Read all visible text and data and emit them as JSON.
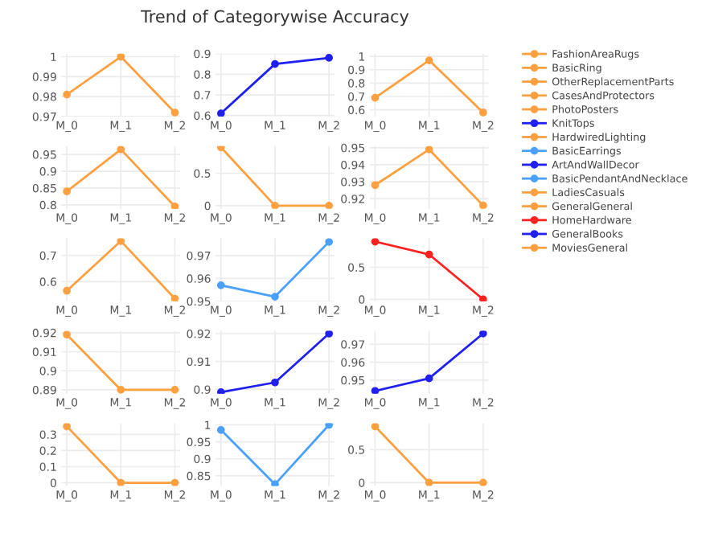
{
  "chart_data": [
    {
      "type": "line",
      "categories": [
        "M_0",
        "M_1",
        "M_2"
      ],
      "series": [
        {
          "name": "FashionAreaRugs",
          "color": "#ffa040",
          "values": [
            0.981,
            1.0,
            0.972
          ]
        }
      ],
      "ylim": [
        0.97,
        1.0015
      ],
      "yticks": [
        0.97,
        0.98,
        0.99,
        1
      ],
      "grid": true,
      "marker": "circle",
      "legend": "right"
    },
    {
      "type": "line",
      "categories": [
        "M_0",
        "M_1",
        "M_2"
      ],
      "series": [
        {
          "name": "BasicRing",
          "color": "#ffa040",
          "values": [
            0.84,
            0.965,
            0.795
          ]
        }
      ],
      "ylim": [
        0.788,
        0.975
      ],
      "yticks": [
        0.8,
        0.85,
        0.9,
        0.95
      ],
      "grid": true,
      "marker": "circle",
      "legend": "right"
    },
    {
      "type": "line",
      "categories": [
        "M_0",
        "M_1",
        "M_2"
      ],
      "series": [
        {
          "name": "OtherReplacementParts",
          "color": "#ffa040",
          "values": [
            0.565,
            0.755,
            0.535
          ]
        }
      ],
      "ylim": [
        0.525,
        0.765
      ],
      "yticks": [
        0.6,
        0.7
      ],
      "grid": true,
      "marker": "circle",
      "legend": "right"
    },
    {
      "type": "line",
      "categories": [
        "M_0",
        "M_1",
        "M_2"
      ],
      "series": [
        {
          "name": "CasesAndProtectors",
          "color": "#ffa040",
          "values": [
            0.919,
            0.89,
            0.89
          ]
        }
      ],
      "ylim": [
        0.888,
        0.921
      ],
      "yticks": [
        0.89,
        0.9,
        0.91,
        0.92
      ],
      "grid": true,
      "marker": "circle",
      "legend": "right"
    },
    {
      "type": "line",
      "categories": [
        "M_0",
        "M_1",
        "M_2"
      ],
      "series": [
        {
          "name": "PhotoPosters",
          "color": "#ffa040",
          "values": [
            0.35,
            0,
            0
          ]
        }
      ],
      "ylim": [
        -0.02,
        0.37
      ],
      "yticks": [
        0,
        0.1,
        0.2,
        0.3
      ],
      "grid": true,
      "marker": "circle",
      "legend": "right"
    },
    {
      "type": "line",
      "title": "Trend of Categorywise Accuracy",
      "categories": [
        "M_0",
        "M_1",
        "M_2"
      ],
      "series": [
        {
          "name": "KnitTops",
          "color": "#2020f0",
          "values": [
            0.61,
            0.85,
            0.88
          ]
        }
      ],
      "ylim": [
        0.595,
        0.9
      ],
      "yticks": [
        0.6,
        0.7,
        0.8,
        0.9
      ],
      "grid": true,
      "marker": "circle",
      "legend": "right"
    },
    {
      "type": "line",
      "categories": [
        "M_0",
        "M_1",
        "M_2"
      ],
      "series": [
        {
          "name": "HardwiredLighting",
          "color": "#ffa040",
          "values": [
            0.9,
            0,
            0
          ]
        }
      ],
      "ylim": [
        -0.05,
        0.92
      ],
      "yticks": [
        0,
        0.5
      ],
      "grid": true,
      "marker": "circle",
      "legend": "right"
    },
    {
      "type": "line",
      "categories": [
        "M_0",
        "M_1",
        "M_2"
      ],
      "series": [
        {
          "name": "BasicEarrings",
          "color": "#4aa0ff",
          "values": [
            0.957,
            0.952,
            0.976
          ]
        }
      ],
      "ylim": [
        0.95,
        0.9775
      ],
      "yticks": [
        0.95,
        0.96,
        0.97
      ],
      "grid": true,
      "marker": "circle",
      "legend": "right"
    },
    {
      "type": "line",
      "categories": [
        "M_0",
        "M_1",
        "M_2"
      ],
      "series": [
        {
          "name": "ArtAndWallDecor",
          "color": "#2020f0",
          "values": [
            0.899,
            0.9025,
            0.92
          ]
        }
      ],
      "ylim": [
        0.8985,
        0.921
      ],
      "yticks": [
        0.9,
        0.91,
        0.92
      ],
      "grid": true,
      "marker": "circle",
      "legend": "right"
    },
    {
      "type": "line",
      "categories": [
        "M_0",
        "M_1",
        "M_2"
      ],
      "series": [
        {
          "name": "BasicPendantAndNecklace",
          "color": "#4aa0ff",
          "values": [
            0.985,
            0.825,
            1.0
          ]
        }
      ],
      "ylim": [
        0.82,
        1.005
      ],
      "yticks": [
        0.85,
        0.9,
        0.95,
        1
      ],
      "grid": true,
      "marker": "circle",
      "legend": "right"
    },
    {
      "type": "line",
      "categories": [
        "M_0",
        "M_1",
        "M_2"
      ],
      "series": [
        {
          "name": "LadiesCasuals",
          "color": "#ffa040",
          "values": [
            0.69,
            0.97,
            0.58
          ]
        }
      ],
      "ylim": [
        0.55,
        1.02
      ],
      "yticks": [
        0.6,
        0.7,
        0.8,
        0.9,
        1
      ],
      "grid": true,
      "marker": "circle",
      "legend": "right"
    },
    {
      "type": "line",
      "categories": [
        "M_0",
        "M_1",
        "M_2"
      ],
      "series": [
        {
          "name": "GeneralGeneral",
          "color": "#ffa040",
          "values": [
            0.928,
            0.949,
            0.916
          ]
        }
      ],
      "ylim": [
        0.914,
        0.951
      ],
      "yticks": [
        0.92,
        0.93,
        0.94,
        0.95
      ],
      "grid": true,
      "marker": "circle",
      "legend": "right"
    },
    {
      "type": "line",
      "categories": [
        "M_0",
        "M_1",
        "M_2"
      ],
      "series": [
        {
          "name": "HomeHardware",
          "color": "#ff2020",
          "values": [
            0.9,
            0.7,
            0
          ]
        }
      ],
      "ylim": [
        -0.03,
        0.95
      ],
      "yticks": [
        0,
        0.5
      ],
      "grid": true,
      "marker": "circle",
      "legend": "right"
    },
    {
      "type": "line",
      "categories": [
        "M_0",
        "M_1",
        "M_2"
      ],
      "series": [
        {
          "name": "GeneralBooks",
          "color": "#2020f0",
          "values": [
            0.944,
            0.951,
            0.976
          ]
        }
      ],
      "ylim": [
        0.9425,
        0.9775
      ],
      "yticks": [
        0.95,
        0.96,
        0.97
      ],
      "grid": true,
      "marker": "circle",
      "legend": "right"
    },
    {
      "type": "line",
      "categories": [
        "M_0",
        "M_1",
        "M_2"
      ],
      "series": [
        {
          "name": "MoviesGeneral",
          "color": "#ffa040",
          "values": [
            0.85,
            0,
            0
          ]
        }
      ],
      "ylim": [
        -0.05,
        0.9
      ],
      "yticks": [
        0,
        0.5
      ],
      "grid": true,
      "marker": "circle",
      "legend": "right"
    }
  ]
}
